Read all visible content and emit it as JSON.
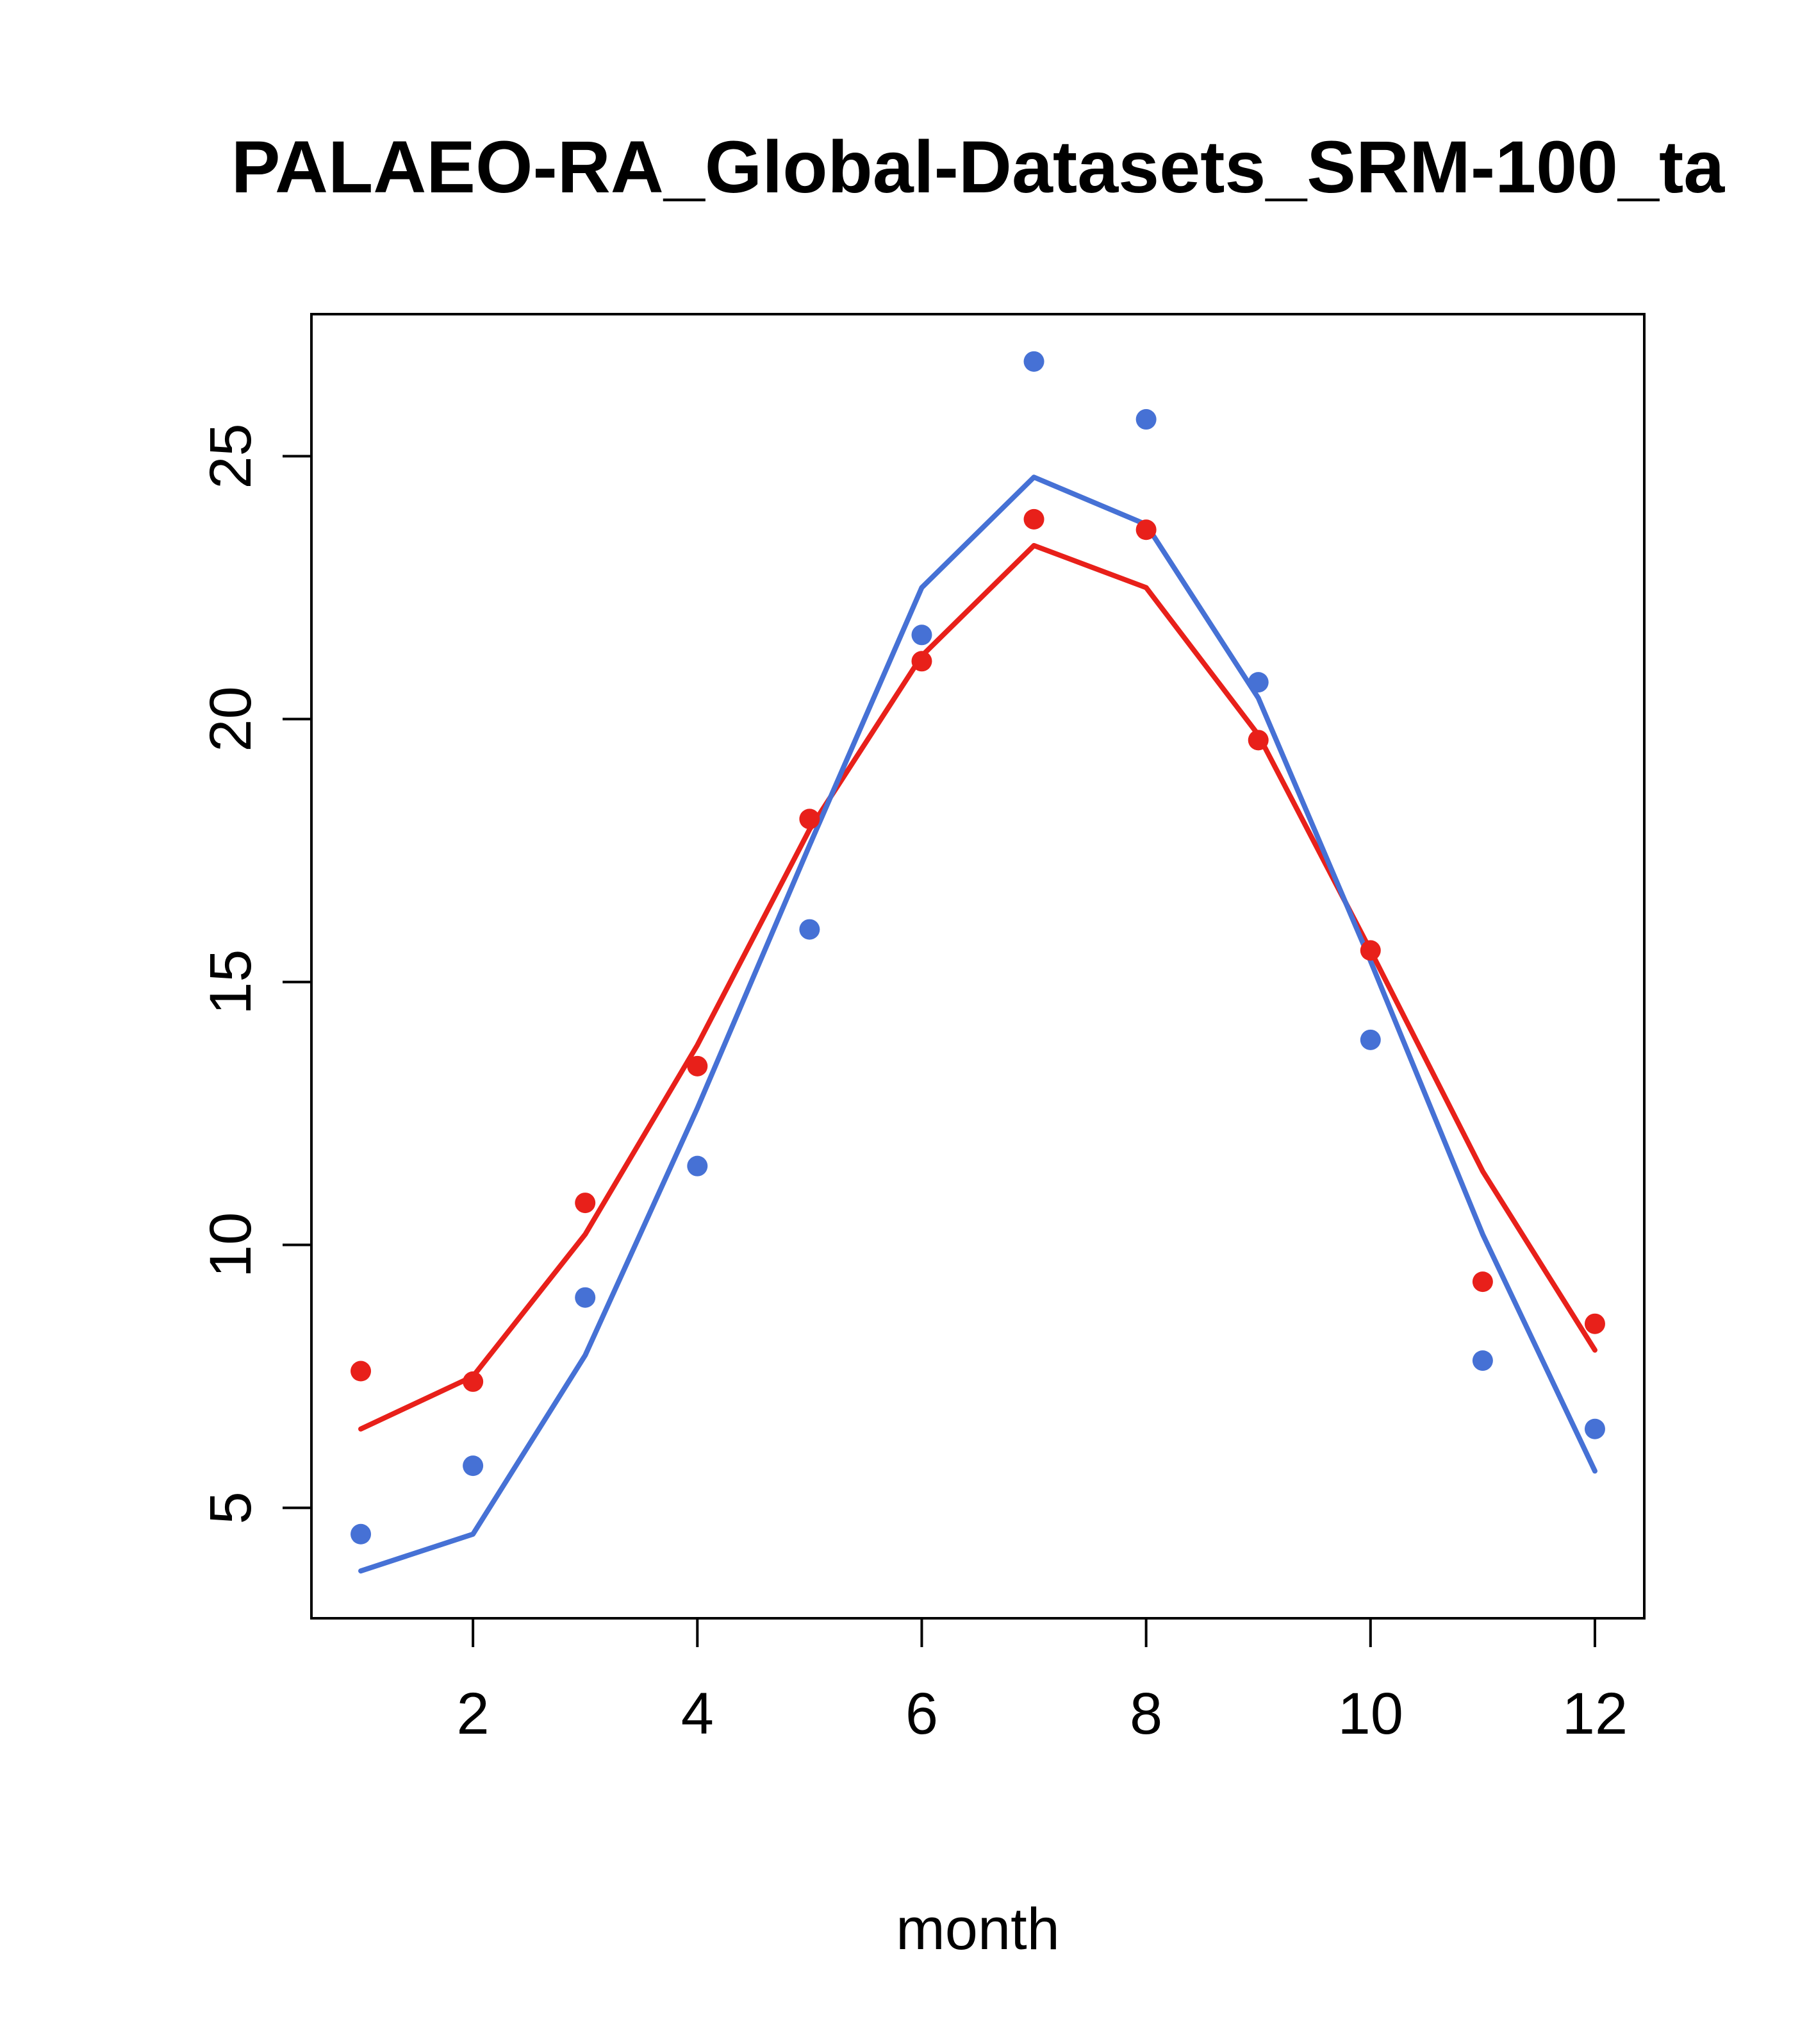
{
  "title": "PALAEO-RA_Global-Datasets_SRM-100_ta",
  "colors": {
    "red": "#e8201a",
    "blue": "#4671d5",
    "axis": "#000000",
    "background": "#ffffff"
  },
  "chart_data": {
    "type": "line",
    "title": "PALAEO-RA_Global-Datasets_SRM-100_ta",
    "xlabel": "month",
    "ylabel": "",
    "x": [
      1,
      2,
      3,
      4,
      5,
      6,
      7,
      8,
      9,
      10,
      11,
      12
    ],
    "xticks": [
      2,
      4,
      6,
      8,
      10,
      12
    ],
    "yticks": [
      5,
      10,
      15,
      20,
      25
    ],
    "xlim": [
      0.56,
      12.44
    ],
    "ylim": [
      2.9,
      27.7
    ],
    "grid": false,
    "legend": null,
    "series": [
      {
        "name": "red-line",
        "type": "line",
        "color": "#e8201a",
        "values": [
          6.5,
          7.5,
          10.2,
          13.8,
          17.9,
          21.2,
          23.3,
          22.5,
          19.7,
          15.6,
          11.4,
          8.0
        ]
      },
      {
        "name": "blue-line",
        "type": "line",
        "color": "#4671d5",
        "values": [
          3.8,
          4.5,
          7.9,
          12.6,
          17.6,
          22.5,
          24.6,
          23.7,
          20.4,
          15.4,
          10.2,
          5.7
        ]
      },
      {
        "name": "red-points",
        "type": "scatter",
        "color": "#e8201a",
        "values": [
          7.6,
          7.4,
          10.8,
          13.4,
          18.1,
          21.1,
          23.8,
          23.6,
          19.6,
          15.6,
          9.3,
          8.5
        ]
      },
      {
        "name": "blue-points",
        "type": "scatter",
        "color": "#4671d5",
        "values": [
          4.5,
          5.8,
          9.0,
          11.5,
          16.0,
          21.6,
          26.8,
          25.7,
          20.7,
          13.9,
          7.8,
          6.5
        ]
      }
    ]
  }
}
